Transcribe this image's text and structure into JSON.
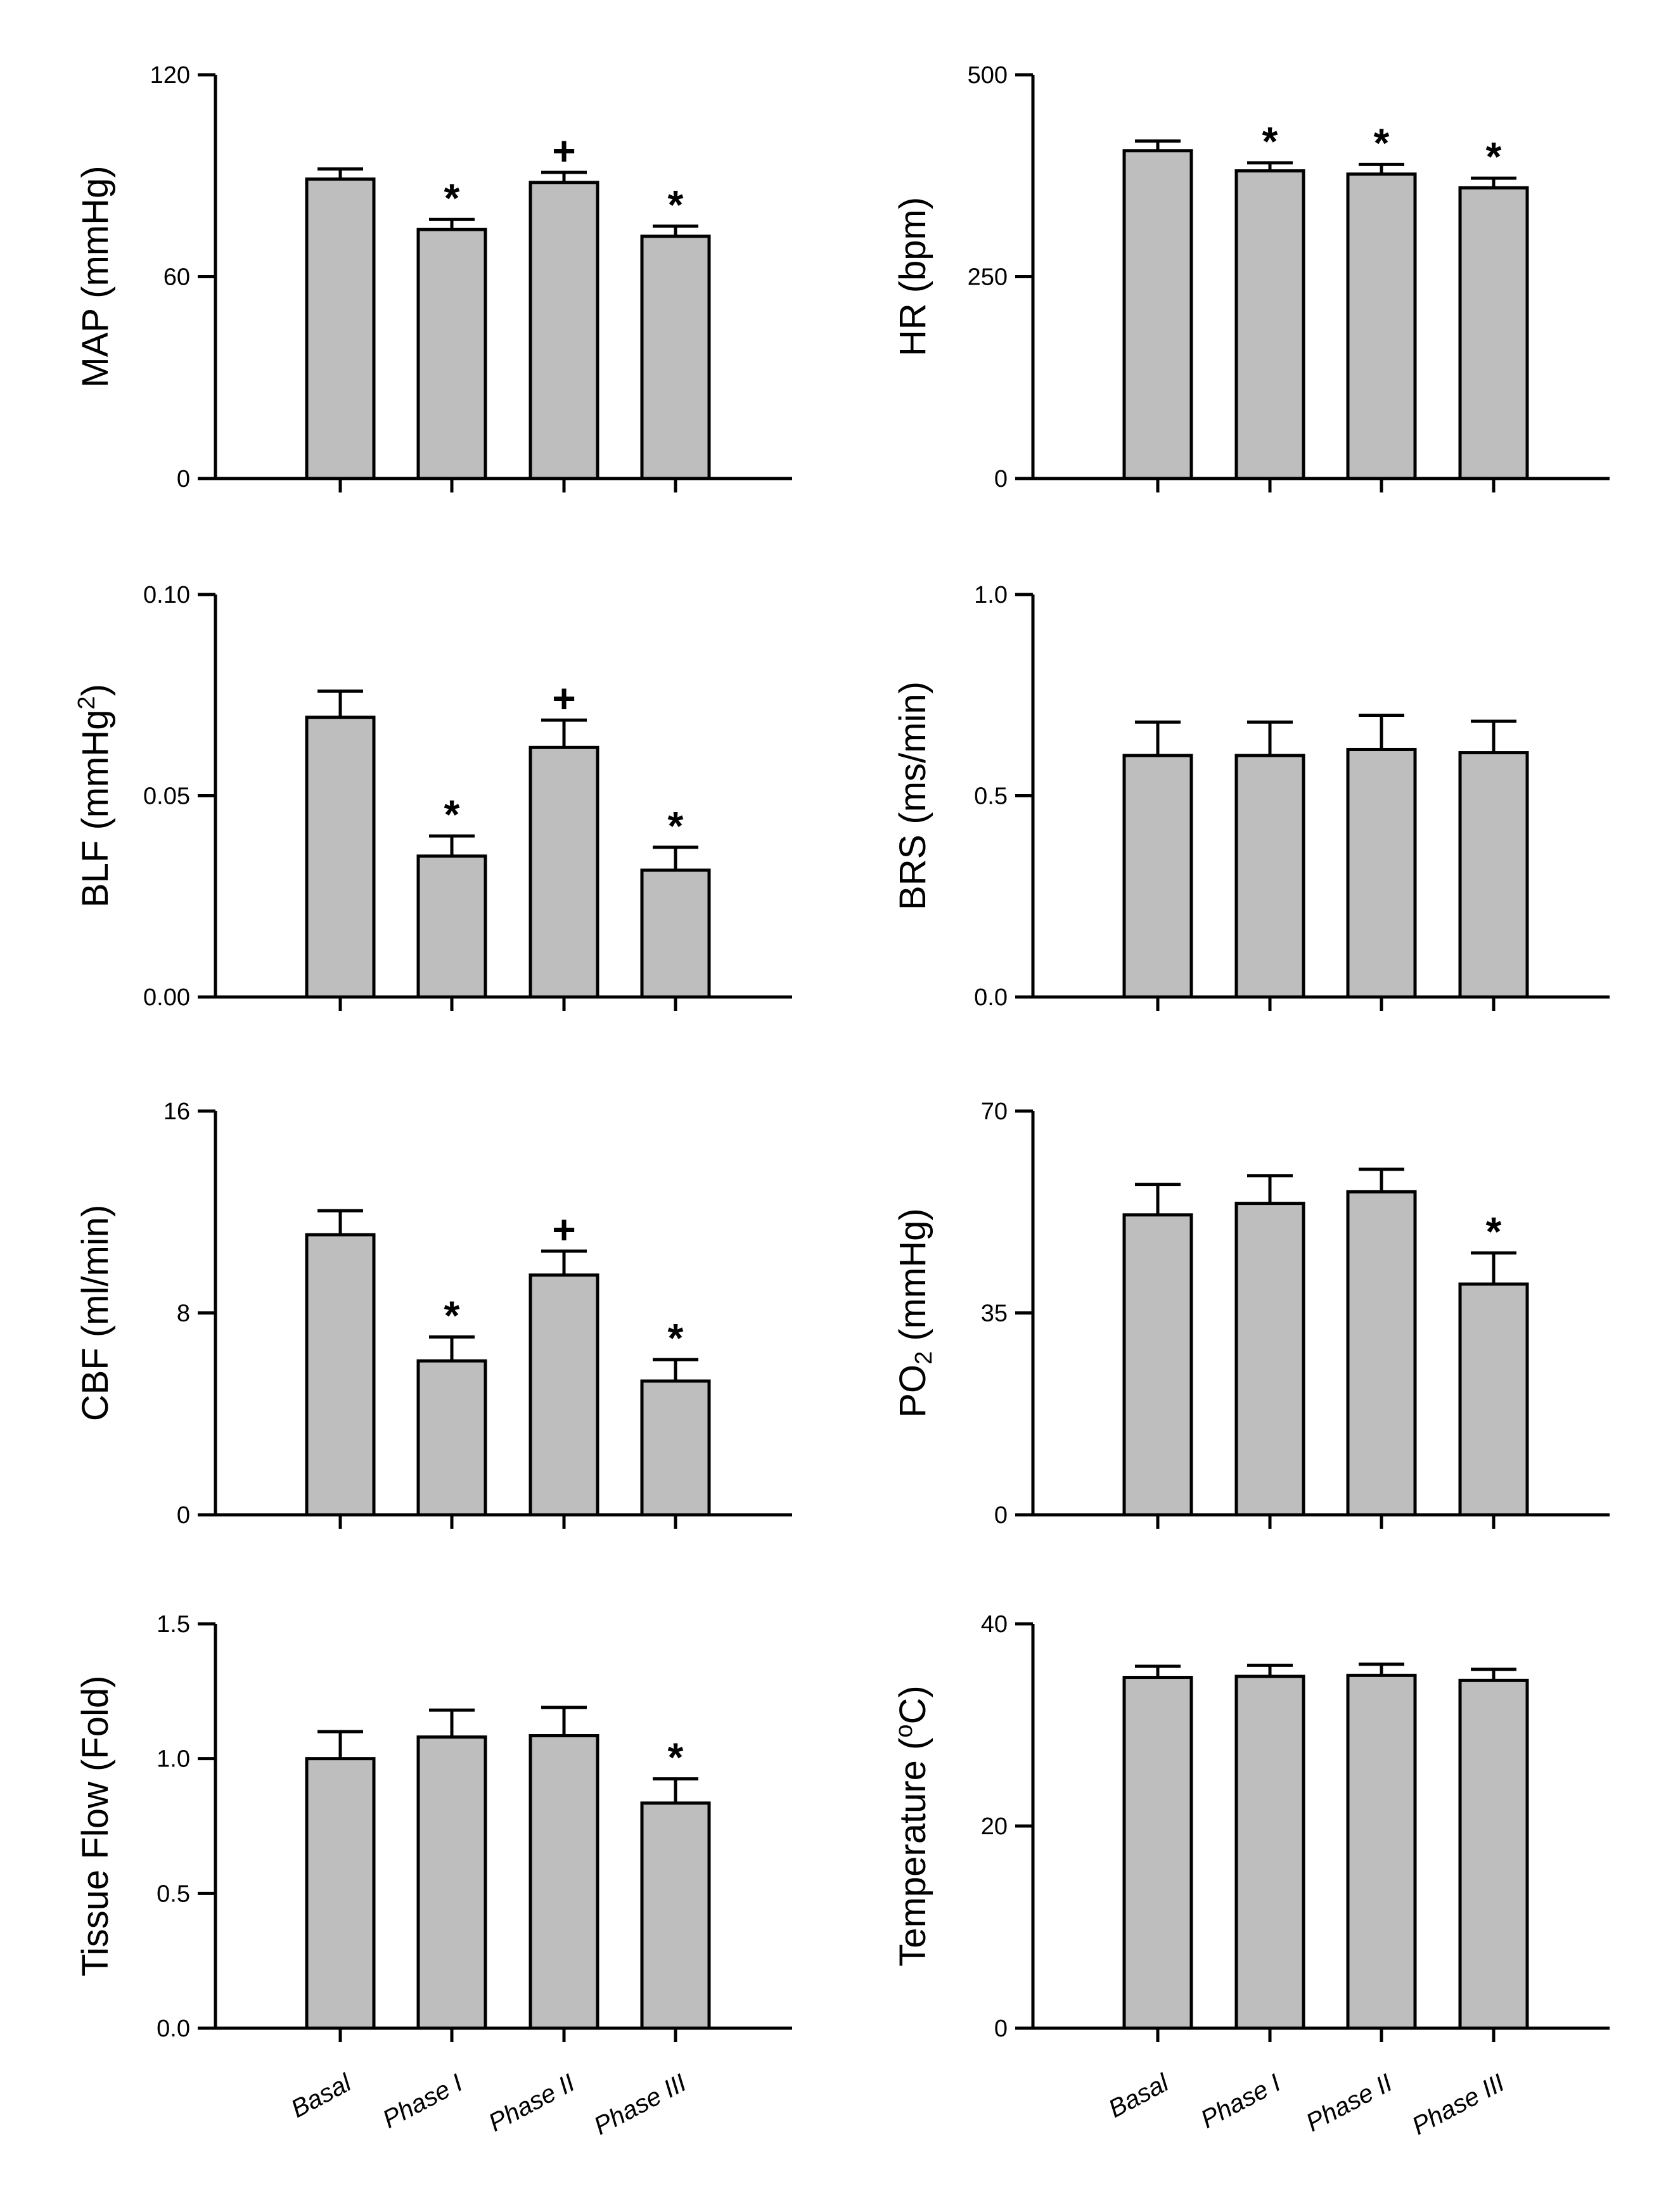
{
  "colors": {
    "bar_fill": "#bebebe",
    "axis": "#000000"
  },
  "chart_data": [
    {
      "type": "bar",
      "panel": "MAP",
      "ylabel": "MAP (mmHg)",
      "ylabel_parts": [
        {
          "t": "MAP (mmHg)"
        }
      ],
      "ylim": [
        0,
        120
      ],
      "yticks": [
        0,
        60,
        120
      ],
      "ytick_labels": [
        "0",
        "60",
        "120"
      ],
      "categories": [
        "Basal",
        "Phase I",
        "Phase II",
        "Phase III"
      ],
      "show_category_labels": false,
      "values": [
        89,
        74,
        88,
        72
      ],
      "errors": [
        3,
        3,
        3,
        3
      ],
      "markers": [
        "",
        "*",
        "+",
        "*"
      ]
    },
    {
      "type": "bar",
      "panel": "HR",
      "ylabel": "HR (bpm)",
      "ylabel_parts": [
        {
          "t": "HR (bpm)"
        }
      ],
      "ylim": [
        0,
        500
      ],
      "yticks": [
        0,
        250,
        500
      ],
      "ytick_labels": [
        "0",
        "250",
        "500"
      ],
      "categories": [
        "Basal",
        "Phase I",
        "Phase II",
        "Phase III"
      ],
      "show_category_labels": false,
      "values": [
        406,
        381,
        377,
        360
      ],
      "errors": [
        12,
        10,
        12,
        12
      ],
      "markers": [
        "",
        "*",
        "*",
        "*"
      ]
    },
    {
      "type": "bar",
      "panel": "BLF",
      "ylabel": "BLF (mmHg2)",
      "ylabel_parts": [
        {
          "t": "BLF (mmHg"
        },
        {
          "t": "2",
          "sup": true
        },
        {
          "t": ")"
        }
      ],
      "ylim": [
        0,
        0.1
      ],
      "yticks": [
        0,
        0.05,
        0.1
      ],
      "ytick_labels": [
        "0.00",
        "0.05",
        "0.10"
      ],
      "categories": [
        "Basal",
        "Phase I",
        "Phase II",
        "Phase III"
      ],
      "show_category_labels": false,
      "values": [
        0.0695,
        0.035,
        0.062,
        0.0315
      ],
      "errors": [
        0.0065,
        0.005,
        0.0068,
        0.0057
      ],
      "markers": [
        "",
        "*",
        "+",
        "*"
      ]
    },
    {
      "type": "bar",
      "panel": "BRS",
      "ylabel": "BRS (ms/min)",
      "ylabel_parts": [
        {
          "t": "BRS (ms/min)"
        }
      ],
      "ylim": [
        0,
        1.0
      ],
      "yticks": [
        0,
        0.5,
        1.0
      ],
      "ytick_labels": [
        "0.0",
        "0.5",
        "1.0"
      ],
      "categories": [
        "Basal",
        "Phase I",
        "Phase II",
        "Phase III"
      ],
      "show_category_labels": false,
      "values": [
        0.6,
        0.6,
        0.615,
        0.607
      ],
      "errors": [
        0.083,
        0.083,
        0.085,
        0.078
      ],
      "markers": [
        "",
        "",
        "",
        ""
      ]
    },
    {
      "type": "bar",
      "panel": "CBF",
      "ylabel": "CBF (ml/min)",
      "ylabel_parts": [
        {
          "t": "CBF (ml/min)"
        }
      ],
      "ylim": [
        0,
        16
      ],
      "yticks": [
        0,
        8,
        16
      ],
      "ytick_labels": [
        "0",
        "8",
        "16"
      ],
      "categories": [
        "Basal",
        "Phase I",
        "Phase II",
        "Phase III"
      ],
      "show_category_labels": false,
      "values": [
        11.1,
        6.1,
        9.5,
        5.3
      ],
      "errors": [
        0.95,
        0.95,
        0.95,
        0.85
      ],
      "markers": [
        "",
        "*",
        "+",
        "*"
      ]
    },
    {
      "type": "bar",
      "panel": "PO2",
      "ylabel": "PO2 (mmHg)",
      "ylabel_parts": [
        {
          "t": "PO"
        },
        {
          "t": "2",
          "sub": true
        },
        {
          "t": " (mmHg)"
        }
      ],
      "ylim": [
        0,
        70
      ],
      "yticks": [
        0,
        35,
        70
      ],
      "ytick_labels": [
        "0",
        "35",
        "70"
      ],
      "categories": [
        "Basal",
        "Phase I",
        "Phase II",
        "Phase III"
      ],
      "show_category_labels": false,
      "values": [
        52,
        54,
        56,
        40
      ],
      "errors": [
        5.3,
        4.8,
        3.9,
        5.4
      ],
      "markers": [
        "",
        "",
        "",
        "*"
      ]
    },
    {
      "type": "bar",
      "panel": "Tissue Flow",
      "ylabel": "Tissue Flow (Fold)",
      "ylabel_parts": [
        {
          "t": "Tissue Flow (Fold)"
        }
      ],
      "ylim": [
        0,
        1.5
      ],
      "yticks": [
        0,
        0.5,
        1.0,
        1.5
      ],
      "ytick_labels": [
        "0.0",
        "0.5",
        "1.0",
        "1.5"
      ],
      "categories": [
        "Basal",
        "Phase I",
        "Phase II",
        "Phase III"
      ],
      "show_category_labels": true,
      "values": [
        1.0,
        1.08,
        1.085,
        0.835
      ],
      "errors": [
        0.1,
        0.1,
        0.105,
        0.09
      ],
      "markers": [
        "",
        "",
        "",
        "*"
      ]
    },
    {
      "type": "bar",
      "panel": "Temperature",
      "ylabel": "Temperature (oC)",
      "ylabel_parts": [
        {
          "t": "Temperature ("
        },
        {
          "t": "o",
          "sup": true
        },
        {
          "t": "C)"
        }
      ],
      "ylim": [
        0,
        40
      ],
      "yticks": [
        0,
        20,
        40
      ],
      "ytick_labels": [
        "0",
        "20",
        "40"
      ],
      "categories": [
        "Basal",
        "Phase I",
        "Phase II",
        "Phase III"
      ],
      "show_category_labels": true,
      "values": [
        34.7,
        34.8,
        34.9,
        34.4
      ],
      "errors": [
        1.1,
        1.1,
        1.1,
        1.1
      ],
      "markers": [
        "",
        "",
        "",
        ""
      ]
    }
  ]
}
